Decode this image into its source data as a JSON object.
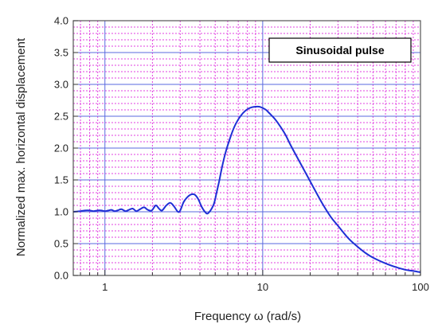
{
  "chart_data": {
    "type": "line",
    "xlabel": "Frequency ω (rad/s)",
    "ylabel": "Normalized max. horizontal displacement",
    "x_scale": "log",
    "xlim": [
      0.63,
      100
    ],
    "ylim": [
      0,
      4.0
    ],
    "x_ticks": [
      {
        "value": 1,
        "label": "1"
      },
      {
        "value": 10,
        "label": "10"
      },
      {
        "value": 100,
        "label": "100"
      }
    ],
    "y_ticks": [
      {
        "value": 0.0,
        "label": "0.0"
      },
      {
        "value": 0.5,
        "label": "0.5"
      },
      {
        "value": 1.0,
        "label": "1.0"
      },
      {
        "value": 1.5,
        "label": "1.5"
      },
      {
        "value": 2.0,
        "label": "2.0"
      },
      {
        "value": 2.5,
        "label": "2.5"
      },
      {
        "value": 3.0,
        "label": "3.0"
      },
      {
        "value": 3.5,
        "label": "3.5"
      },
      {
        "value": 4.0,
        "label": "4.0"
      }
    ],
    "grid": true,
    "annotation": "Sinusoidal pulse",
    "colors": {
      "line": "#1f2fd6",
      "major_grid": "#5a6adf",
      "minor_grid": "#e040e0",
      "frame": "#555555"
    },
    "series": [
      {
        "x": [
          0.63,
          0.7,
          0.75,
          0.8,
          0.85,
          0.9,
          0.95,
          1.0,
          1.05,
          1.1,
          1.15,
          1.2,
          1.27,
          1.35,
          1.42,
          1.5,
          1.58,
          1.67,
          1.77,
          1.87,
          1.98,
          2.1,
          2.2,
          2.3,
          2.45,
          2.6,
          2.75,
          2.9,
          3.0,
          3.15,
          3.3,
          3.5,
          3.7,
          3.9,
          4.1,
          4.3,
          4.45,
          4.6,
          4.75,
          4.9,
          5.0,
          5.1,
          5.3,
          5.5,
          5.8,
          6.2,
          6.6,
          7.0,
          7.5,
          8.0,
          8.5,
          9.0,
          9.5,
          10.0,
          10.5,
          11.0,
          12.0,
          13.0,
          14.0,
          15.0,
          17.0,
          19.0,
          21.0,
          24.0,
          27.0,
          30.0,
          35.0,
          40.0,
          45.0,
          50.0,
          60.0,
          70.0,
          80.0,
          90.0,
          100.0
        ],
        "y": [
          1.0,
          1.01,
          1.02,
          1.02,
          1.01,
          1.02,
          1.02,
          1.01,
          1.02,
          1.03,
          1.01,
          1.02,
          1.04,
          1.01,
          1.03,
          1.05,
          1.01,
          1.04,
          1.07,
          1.03,
          1.02,
          1.1,
          1.05,
          1.02,
          1.1,
          1.14,
          1.08,
          1.0,
          1.02,
          1.15,
          1.22,
          1.27,
          1.27,
          1.2,
          1.08,
          1.0,
          0.97,
          1.0,
          1.05,
          1.12,
          1.2,
          1.3,
          1.48,
          1.68,
          1.92,
          2.15,
          2.33,
          2.45,
          2.55,
          2.61,
          2.64,
          2.65,
          2.65,
          2.63,
          2.6,
          2.55,
          2.45,
          2.33,
          2.2,
          2.05,
          1.8,
          1.58,
          1.38,
          1.12,
          0.92,
          0.78,
          0.58,
          0.45,
          0.35,
          0.28,
          0.19,
          0.13,
          0.09,
          0.07,
          0.05
        ]
      }
    ]
  }
}
